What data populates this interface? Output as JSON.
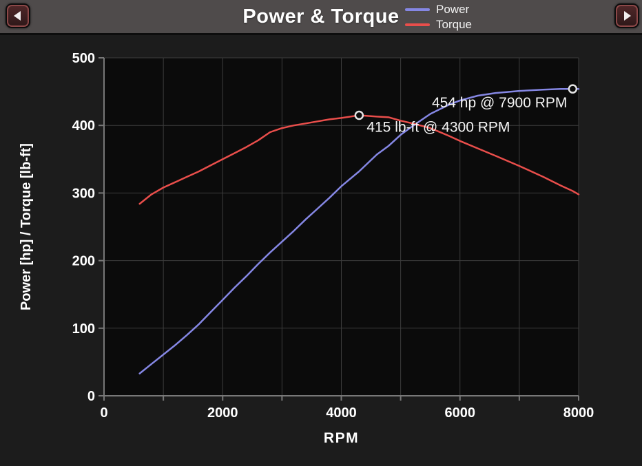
{
  "header": {
    "title": "Power & Torque",
    "prev_button": {
      "icon": "left-arrow-icon"
    },
    "next_button": {
      "icon": "right-arrow-icon"
    }
  },
  "legend": {
    "position": "top-center-right",
    "items": [
      {
        "label": "Power",
        "color": "#8587e4"
      },
      {
        "label": "Torque",
        "color": "#e94e4b"
      }
    ]
  },
  "chart_data": {
    "type": "line",
    "title": "Power & Torque",
    "xlabel": "RPM",
    "ylabel": "Power [hp] / Torque [lb-ft]",
    "xlim": [
      0,
      8000
    ],
    "ylim": [
      0,
      500
    ],
    "x_tick_label_values": [
      0,
      2000,
      4000,
      6000,
      8000
    ],
    "x_grid_interval": 1000,
    "y_grid_interval": 100,
    "grid": true,
    "colors": {
      "plot_background": "#0b0b0b",
      "page_background": "#1c1c1c",
      "grid": "#3d3d3d",
      "axis": "#787878",
      "tick_text": "#ffffff",
      "annotation_text": "#f5f5f5",
      "marker_ring": "#e5e5e5"
    },
    "x": [
      600,
      800,
      1000,
      1200,
      1400,
      1600,
      1800,
      2000,
      2200,
      2400,
      2600,
      2800,
      3000,
      3200,
      3400,
      3600,
      3800,
      4000,
      4300,
      4600,
      4800,
      5000,
      5200,
      5500,
      5800,
      6000,
      6300,
      6600,
      7000,
      7400,
      7700,
      7900,
      8000
    ],
    "series": [
      {
        "name": "Power",
        "unit": "hp",
        "color": "#8587e4",
        "values": [
          33,
          47,
          61,
          75,
          90,
          106,
          124,
          142,
          160,
          177,
          195,
          212,
          228,
          244,
          261,
          277,
          293,
          310,
          332,
          357,
          370,
          386,
          399,
          417,
          430,
          437,
          444,
          448,
          451,
          453,
          454,
          454,
          454
        ],
        "peak": {
          "x": 7900,
          "y": 454,
          "label": "454 hp @ 7900 RPM",
          "anchor": "end",
          "dx": -8,
          "dy": 27
        }
      },
      {
        "name": "Torque",
        "unit": "lb-ft",
        "color": "#e94e4b",
        "values": [
          284,
          298,
          308,
          316,
          324,
          332,
          341,
          350,
          359,
          368,
          378,
          390,
          396,
          400,
          403,
          406,
          409,
          411,
          415,
          413,
          412,
          407,
          403,
          396,
          385,
          377,
          366,
          355,
          340,
          324,
          311,
          303,
          298
        ],
        "peak": {
          "x": 4300,
          "y": 415,
          "label": "415 lb-ft @ 4300 RPM",
          "anchor": "start",
          "dx": 11,
          "dy": 24
        }
      }
    ]
  }
}
